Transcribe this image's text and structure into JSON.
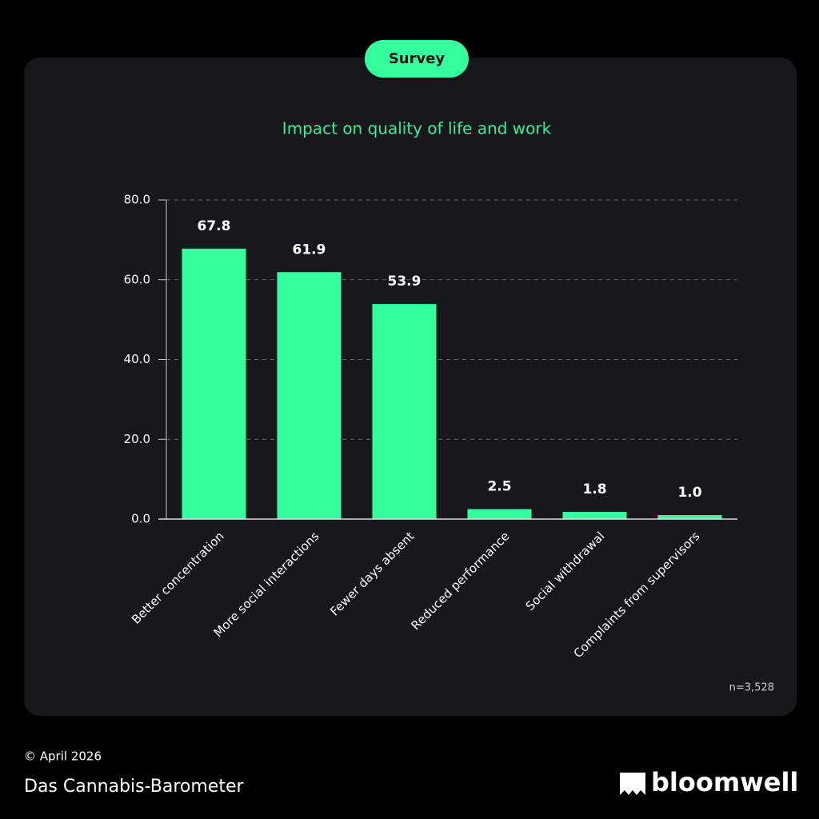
{
  "chart_data": {
    "type": "bar",
    "badge": "Survey",
    "title": "Impact on quality of life and work",
    "categories": [
      "Better concentration",
      "More social interactions",
      "Fewer days absent",
      "Reduced performance",
      "Social withdrawal",
      "Complaints from supervisors"
    ],
    "values": [
      67.8,
      61.9,
      53.9,
      2.5,
      1.8,
      1.0
    ],
    "value_labels": [
      "67.8",
      "61.9",
      "53.9",
      "2.5",
      "1.8",
      "1.0"
    ],
    "color": "#33ff9f",
    "ylim": [
      0,
      80
    ],
    "yticks": [
      {
        "value": 0,
        "label": "0.0"
      },
      {
        "value": 20,
        "label": "20.0"
      },
      {
        "value": 40,
        "label": "40.0"
      },
      {
        "value": 60,
        "label": "60.0"
      },
      {
        "value": 80,
        "label": "80.0"
      }
    ],
    "grid": true,
    "note": "n=3,528"
  },
  "footer": {
    "copyright": "© April 2026",
    "source": "Das Cannabis-Barometer",
    "brand": "bloomwell"
  }
}
